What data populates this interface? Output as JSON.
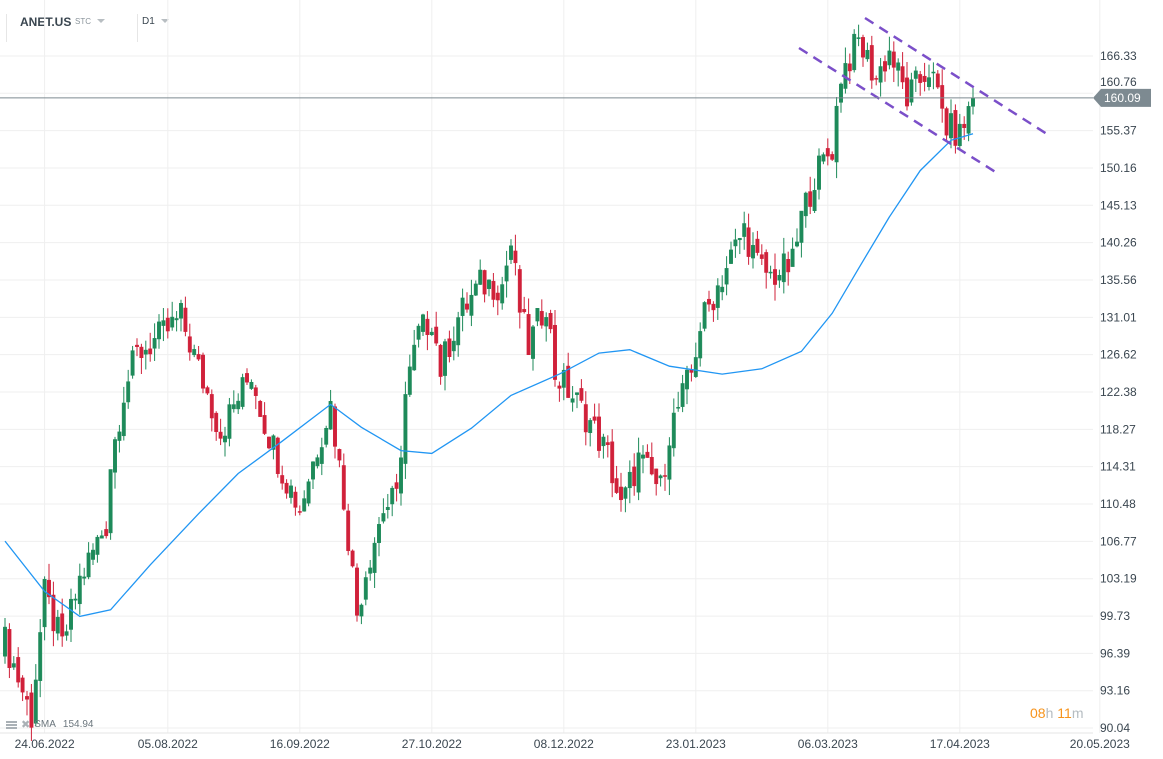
{
  "header": {
    "symbol": "ANET.US",
    "type": "STC",
    "timeframe": "D1"
  },
  "indicator": {
    "name": "SMA",
    "value": "154.94"
  },
  "timer": {
    "hours": "08",
    "h_unit": "h",
    "minutes": "11",
    "m_unit": "m"
  },
  "colors": {
    "up": "#1e8a5a",
    "down": "#d0213a",
    "sma": "#2196f3",
    "channel": "#7b4fc9",
    "price_line": "#7d8a91"
  },
  "chart_data": {
    "type": "candlestick",
    "symbol": "ANET.US",
    "current_price": "160.09",
    "y_scale": "log",
    "ylim": [
      90.04,
      166.33
    ],
    "y_ticks": [
      "166.33",
      "160.76",
      "155.37",
      "150.16",
      "145.13",
      "140.26",
      "135.56",
      "131.01",
      "126.62",
      "122.38",
      "118.27",
      "114.31",
      "110.48",
      "106.77",
      "103.19",
      "99.73",
      "96.39",
      "93.16",
      "90.04"
    ],
    "x_ticks": [
      {
        "label": "24.06.2022",
        "index": 9
      },
      {
        "label": "05.08.2022",
        "index": 37
      },
      {
        "label": "16.09.2022",
        "index": 67
      },
      {
        "label": "27.10.2022",
        "index": 97
      },
      {
        "label": "08.12.2022",
        "index": 127
      },
      {
        "label": "23.01.2023",
        "index": 157
      },
      {
        "label": "06.03.2023",
        "index": 187
      },
      {
        "label": "17.04.2023",
        "index": 217
      },
      {
        "label": "20.05.2023",
        "index": 247
      }
    ],
    "candle_count": 221,
    "close_keypoints": [
      [
        0,
        97.5
      ],
      [
        6,
        91
      ],
      [
        9,
        101.7
      ],
      [
        13,
        97
      ],
      [
        17,
        103
      ],
      [
        23,
        108.5
      ],
      [
        24,
        114.6
      ],
      [
        27,
        122.4
      ],
      [
        30,
        126.7
      ],
      [
        36,
        129
      ],
      [
        40,
        131
      ],
      [
        44,
        125
      ],
      [
        49,
        118
      ],
      [
        56,
        124.5
      ],
      [
        59,
        119
      ],
      [
        63,
        114
      ],
      [
        67,
        110
      ],
      [
        72,
        118
      ],
      [
        74,
        121
      ],
      [
        77,
        111
      ],
      [
        80,
        100
      ],
      [
        82,
        104
      ],
      [
        86,
        110
      ],
      [
        89,
        111
      ],
      [
        91,
        122
      ],
      [
        94,
        129
      ],
      [
        97,
        131
      ],
      [
        99,
        125
      ],
      [
        103,
        131
      ],
      [
        108,
        135
      ],
      [
        113,
        135
      ],
      [
        115,
        140
      ],
      [
        117,
        132
      ],
      [
        119,
        127.5
      ],
      [
        123,
        133
      ],
      [
        125,
        124.5
      ],
      [
        128,
        122.6
      ],
      [
        133,
        119
      ],
      [
        137,
        115.5
      ],
      [
        140,
        110
      ],
      [
        144,
        115
      ],
      [
        149,
        112
      ],
      [
        151,
        118
      ],
      [
        156,
        124.5
      ],
      [
        158,
        130
      ],
      [
        163,
        136
      ],
      [
        168,
        142
      ],
      [
        171,
        137.5
      ],
      [
        174,
        136
      ],
      [
        179,
        137.5
      ],
      [
        181,
        143.5
      ],
      [
        184,
        149
      ],
      [
        188,
        153
      ],
      [
        190,
        163.7
      ],
      [
        194,
        168.5
      ],
      [
        198,
        163
      ],
      [
        201,
        167
      ],
      [
        205,
        160
      ],
      [
        210,
        164.5
      ],
      [
        214,
        156
      ],
      [
        217,
        154.6
      ],
      [
        220,
        160.09
      ]
    ],
    "sma_keypoints": [
      [
        0,
        106.8
      ],
      [
        9,
        102
      ],
      [
        17,
        99.7
      ],
      [
        24,
        100.3
      ],
      [
        33,
        104.5
      ],
      [
        44,
        109.5
      ],
      [
        53,
        113.6
      ],
      [
        63,
        117
      ],
      [
        74,
        121
      ],
      [
        81,
        118.5
      ],
      [
        90,
        116
      ],
      [
        97,
        115.7
      ],
      [
        106,
        118.4
      ],
      [
        115,
        122
      ],
      [
        126,
        124.4
      ],
      [
        135,
        126.8
      ],
      [
        142,
        127.2
      ],
      [
        151,
        125.3
      ],
      [
        163,
        124.4
      ],
      [
        172,
        125
      ],
      [
        181,
        127
      ],
      [
        188,
        131.5
      ],
      [
        194,
        137
      ],
      [
        201,
        143.6
      ],
      [
        208,
        149.8
      ],
      [
        215,
        154
      ],
      [
        220,
        154.94
      ]
    ],
    "annotations": [
      {
        "type": "descending-channel-upper"
      },
      {
        "type": "descending-channel-lower"
      }
    ]
  }
}
